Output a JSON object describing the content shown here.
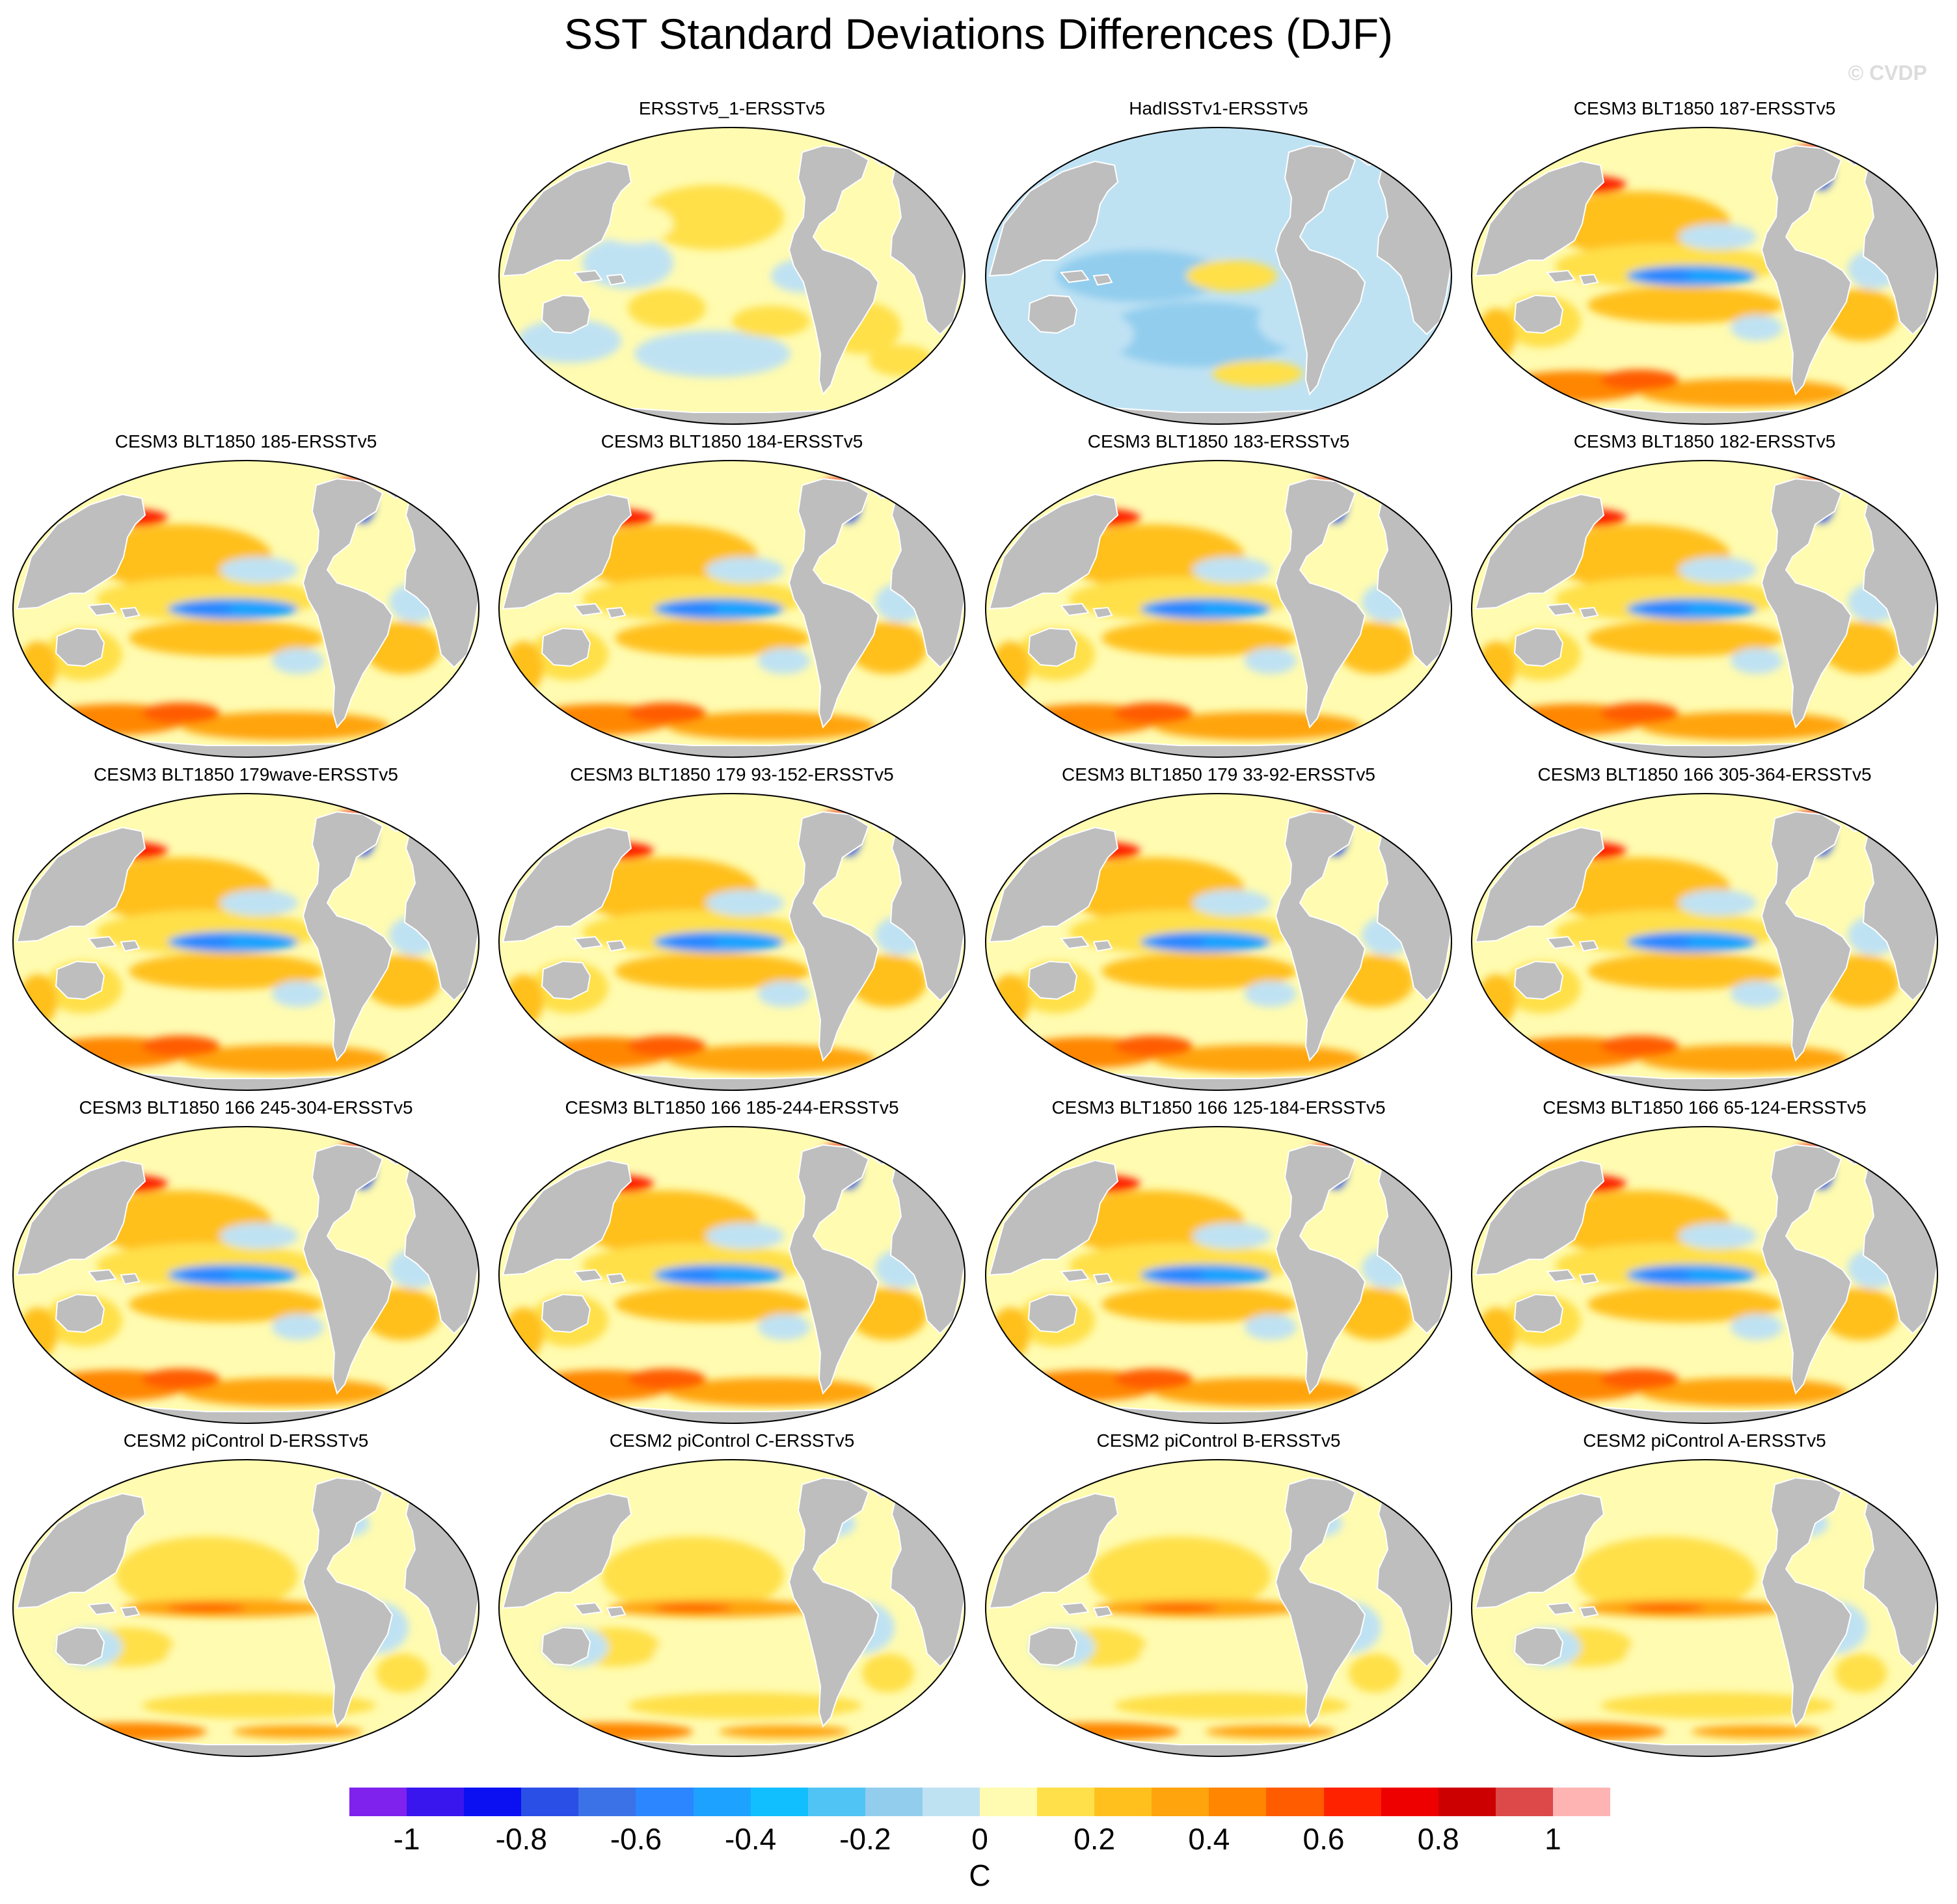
{
  "title": "SST Standard Deviations Differences (DJF)",
  "credit": "© CVDP",
  "panels": [
    {
      "label": "ERSSTv5_1-ERSSTv5",
      "pattern": "obs"
    },
    {
      "label": "HadISSTv1-ERSSTv5",
      "pattern": "had"
    },
    {
      "label": "CESM3 BLT1850 187-ERSSTv5",
      "pattern": "cesm3"
    },
    {
      "label": "CESM3 BLT1850 185-ERSSTv5",
      "pattern": "cesm3"
    },
    {
      "label": "CESM3 BLT1850 184-ERSSTv5",
      "pattern": "cesm3"
    },
    {
      "label": "CESM3 BLT1850 183-ERSSTv5",
      "pattern": "cesm3"
    },
    {
      "label": "CESM3 BLT1850 182-ERSSTv5",
      "pattern": "cesm3"
    },
    {
      "label": "CESM3 BLT1850 179wave-ERSSTv5",
      "pattern": "cesm3"
    },
    {
      "label": "CESM3 BLT1850 179 93-152-ERSSTv5",
      "pattern": "cesm3"
    },
    {
      "label": "CESM3 BLT1850 179 33-92-ERSSTv5",
      "pattern": "cesm3"
    },
    {
      "label": "CESM3 BLT1850 166 305-364-ERSSTv5",
      "pattern": "cesm3"
    },
    {
      "label": "CESM3 BLT1850 166 245-304-ERSSTv5",
      "pattern": "cesm3"
    },
    {
      "label": "CESM3 BLT1850 166 185-244-ERSSTv5",
      "pattern": "cesm3"
    },
    {
      "label": "CESM3 BLT1850 166 125-184-ERSSTv5",
      "pattern": "cesm3"
    },
    {
      "label": "CESM3 BLT1850 166 65-124-ERSSTv5",
      "pattern": "cesm3"
    },
    {
      "label": "CESM2 piControl D-ERSSTv5",
      "pattern": "cesm2"
    },
    {
      "label": "CESM2 piControl C-ERSSTv5",
      "pattern": "cesm2"
    },
    {
      "label": "CESM2 piControl B-ERSSTv5",
      "pattern": "cesm2"
    },
    {
      "label": "CESM2 piControl A-ERSSTv5",
      "pattern": "cesm2"
    }
  ],
  "colorbar": {
    "colors": [
      "#7f22ee",
      "#3a16ee",
      "#0a10f2",
      "#2a4fe6",
      "#3b72e8",
      "#2b86ff",
      "#1ea2ff",
      "#11bfff",
      "#50c4f5",
      "#92cdee",
      "#bfe2f3",
      "#fffbb0",
      "#ffe04a",
      "#ffc01e",
      "#ffa40c",
      "#ff8600",
      "#ff5c00",
      "#ff2200",
      "#ee0000",
      "#cc0000",
      "#dd4848",
      "#ffb4b4"
    ],
    "tick_labels": [
      "-1",
      "-0.8",
      "-0.6",
      "-0.4",
      "-0.2",
      "0",
      "0.2",
      "0.4",
      "0.6",
      "0.8",
      "1"
    ],
    "unit": "C"
  },
  "map_colors": {
    "land": "#bebebe",
    "coast": "#ffffff"
  }
}
